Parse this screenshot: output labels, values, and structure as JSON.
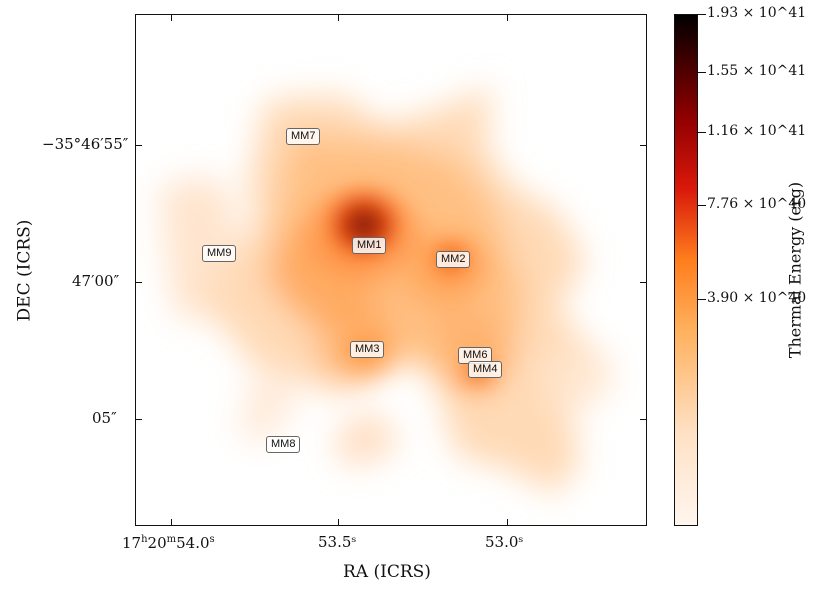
{
  "chart_data": {
    "type": "heatmap",
    "title": "",
    "xlabel": "RA (ICRS)",
    "ylabel": "DEC (ICRS)",
    "colorbar_label": "Thermal Energy (erg)",
    "x_ticks": [
      {
        "raw": "17h20m54.0s",
        "display_main": "17",
        "display_hms": "h20m54.0s"
      },
      {
        "raw": "53.5s",
        "display": "53.5ˢ"
      },
      {
        "raw": "53.0s",
        "display": "53.0ˢ"
      }
    ],
    "y_ticks": [
      {
        "raw": "-35°46'55\"",
        "display": "−35°46′55″"
      },
      {
        "raw": "47'00\"",
        "display": "47′00″"
      },
      {
        "raw": "05\"",
        "display": "05″"
      }
    ],
    "colorbar_ticks": [
      {
        "value": "1.93e41",
        "display": "1.93 × 10^41"
      },
      {
        "value": "1.55e41",
        "display": "1.55 × 10^41"
      },
      {
        "value": "1.16e41",
        "display": "1.16 × 10^41"
      },
      {
        "value": "7.76e40",
        "display": "7.76 × 10^40"
      },
      {
        "value": "3.90e40",
        "display": "3.90 × 10^40"
      }
    ],
    "annotations": [
      {
        "label": "MM7"
      },
      {
        "label": "MM1"
      },
      {
        "label": "MM9"
      },
      {
        "label": "MM2"
      },
      {
        "label": "MM3"
      },
      {
        "label": "MM6"
      },
      {
        "label": "MM4"
      },
      {
        "label": "MM8"
      }
    ]
  },
  "palette": {
    "low": "#fff6ee",
    "mid": "#ff7d1d",
    "high": "#8f0000",
    "max": "#000000"
  }
}
